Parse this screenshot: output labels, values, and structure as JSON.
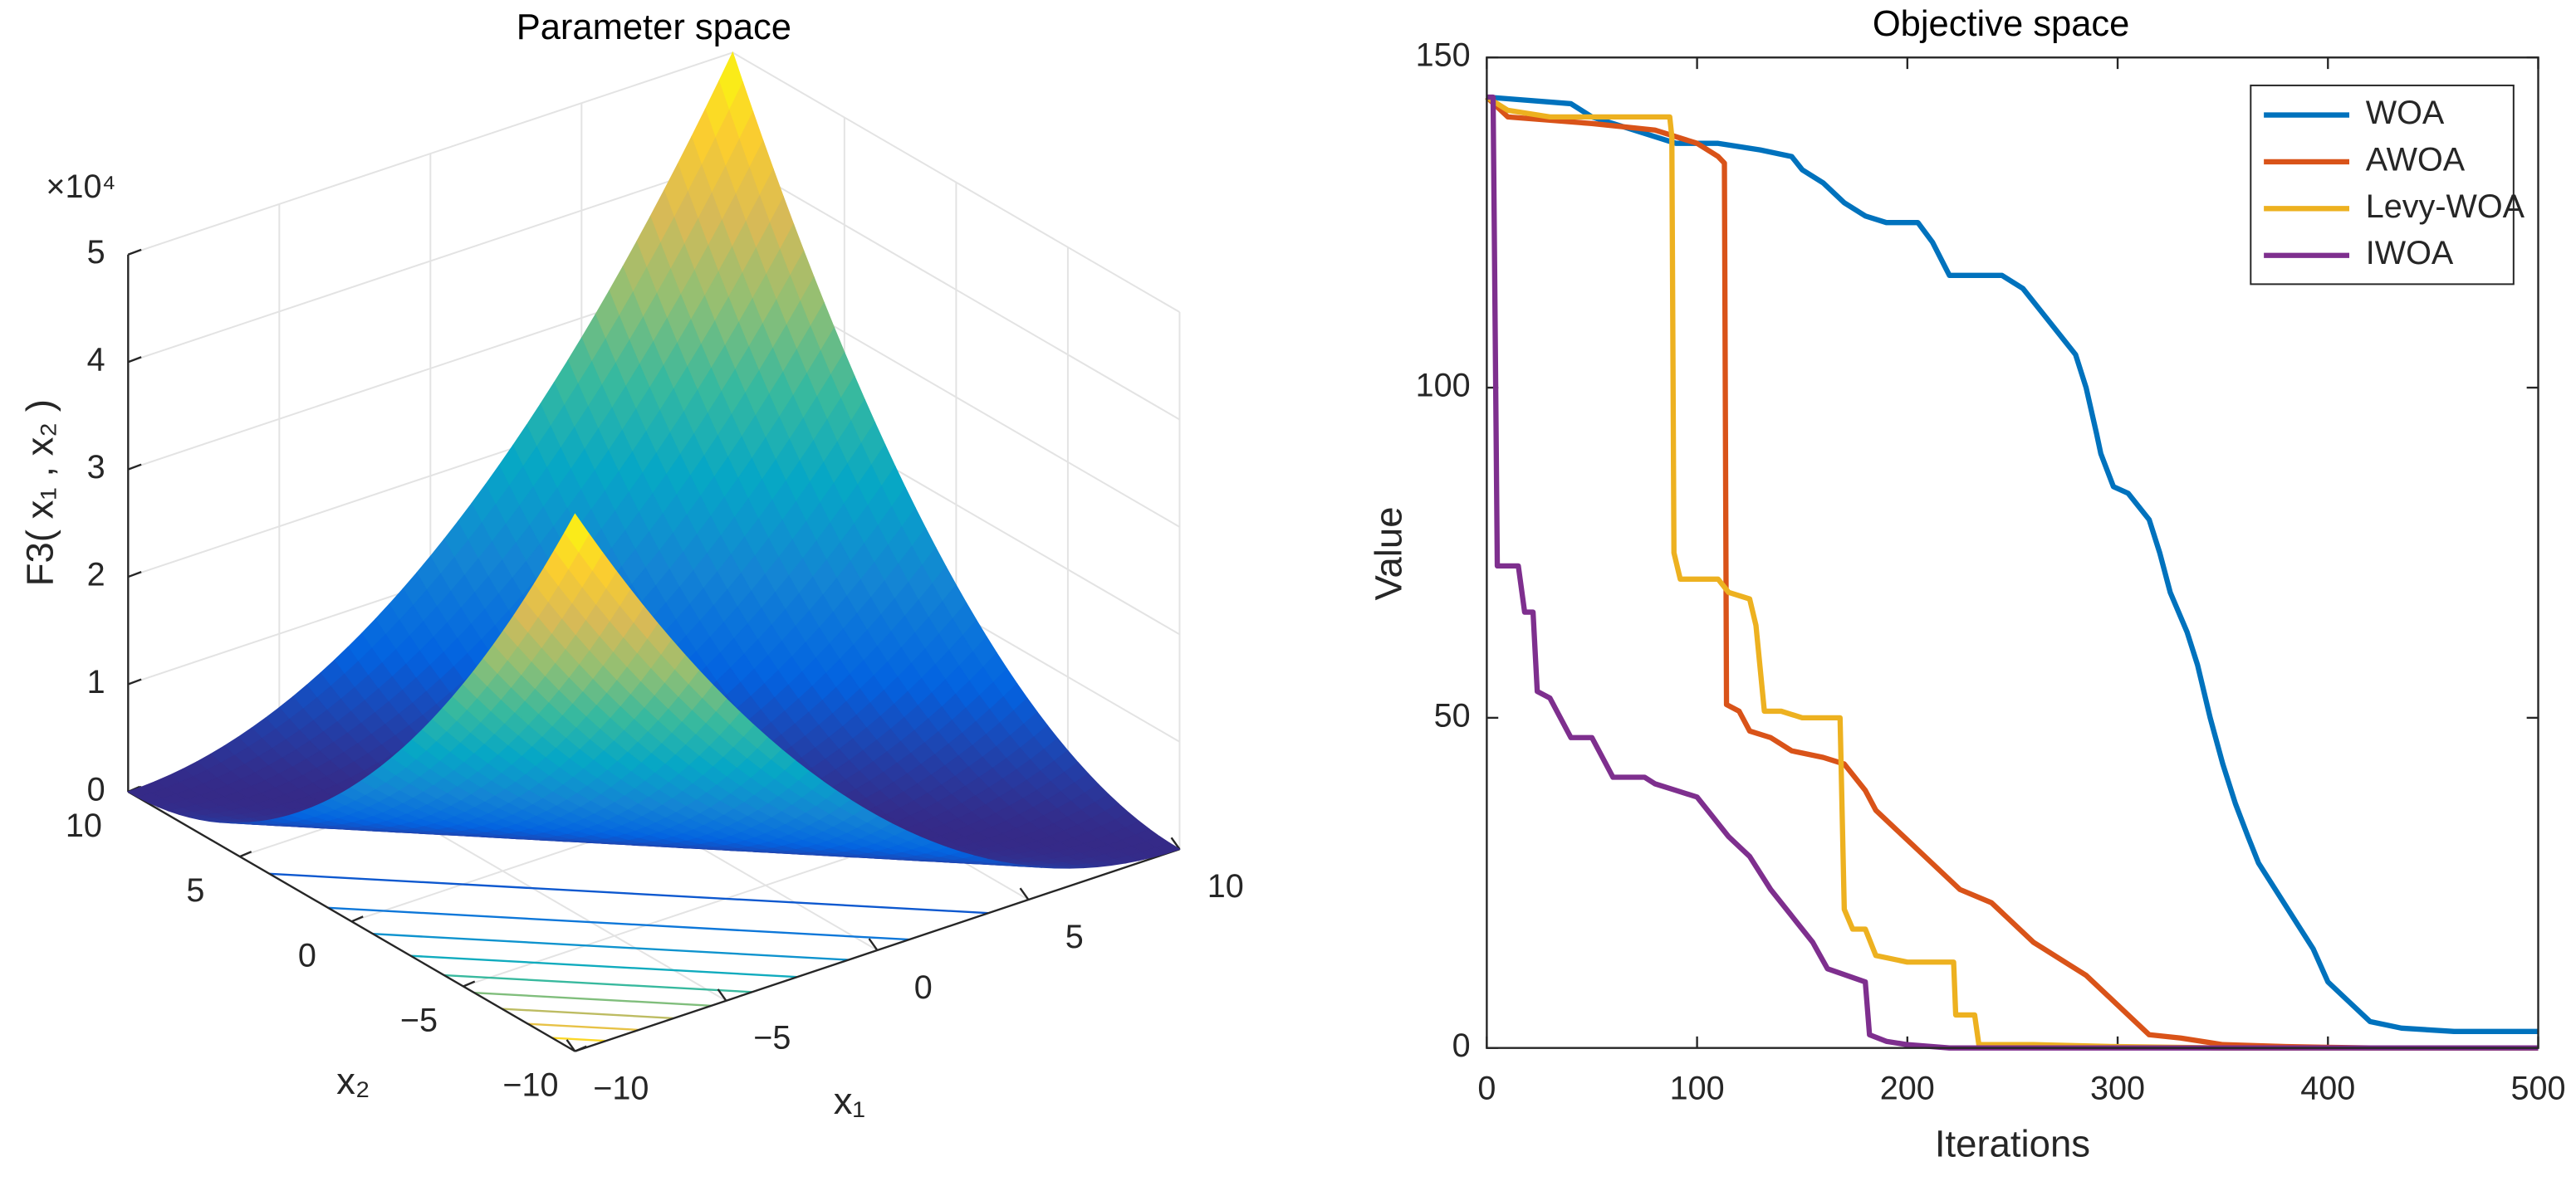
{
  "chart_data": [
    {
      "type": "surface",
      "title": "Parameter space",
      "xlabel": "x₁",
      "ylabel": "x₂",
      "zlabel": "F3( x₁ , x₂ )",
      "zexponent": "×10⁴",
      "xlim": [
        -10,
        10
      ],
      "ylim": [
        -10,
        10
      ],
      "zlim": [
        0,
        5
      ],
      "xticks": [
        {
          "value": -10,
          "label": "−10"
        },
        {
          "value": -5,
          "label": "−5"
        },
        0,
        5,
        10
      ],
      "yticks": [
        {
          "value": -10,
          "label": "−10"
        },
        {
          "value": -5,
          "label": "−5"
        },
        0,
        5,
        10
      ],
      "zticks": [
        0,
        1,
        2,
        3,
        4,
        5
      ],
      "grid": true,
      "contour": true
    },
    {
      "type": "line",
      "title": "Objective space",
      "xlabel": "Iterations",
      "ylabel": "Value",
      "xlim": [
        0,
        500
      ],
      "ylim": [
        0,
        150
      ],
      "xticks": [
        0,
        100,
        200,
        300,
        400,
        500
      ],
      "yticks": [
        0,
        50,
        100,
        150
      ],
      "legend": "northeast",
      "box": true,
      "series": [
        {
          "name": "WOA",
          "color": "#0072bd",
          "x": [
            0,
            40,
            50,
            70,
            90,
            110,
            130,
            145,
            150,
            160,
            170,
            180,
            190,
            205,
            212,
            220,
            245,
            255,
            265,
            275,
            280,
            285,
            290,
            292,
            298,
            305,
            315,
            320,
            325,
            333,
            338,
            344,
            350,
            356,
            362,
            367,
            377,
            385,
            393,
            400,
            410,
            420,
            435,
            460,
            500
          ],
          "values": [
            144,
            143,
            141,
            139,
            137,
            137,
            136,
            135,
            133,
            131,
            128,
            126,
            125,
            125,
            122,
            117,
            117,
            115,
            111,
            107,
            105,
            100,
            93,
            90,
            85,
            84,
            80,
            75,
            69,
            63,
            58,
            50,
            43,
            37,
            32,
            28,
            23,
            19,
            15,
            10,
            7,
            4,
            3,
            2.5,
            2.5
          ]
        },
        {
          "name": "AWOA",
          "color": "#d95319",
          "x": [
            0,
            10,
            50,
            80,
            100,
            110,
            113,
            114,
            120,
            125,
            135,
            145,
            160,
            170,
            180,
            185,
            195,
            205,
            215,
            225,
            240,
            250,
            260,
            275,
            285,
            295,
            305,
            315,
            330,
            350,
            380,
            420,
            500
          ],
          "values": [
            144,
            141,
            140,
            139,
            137,
            135,
            134,
            52,
            51,
            48,
            47,
            45,
            44,
            43,
            39,
            36,
            33,
            30,
            27,
            24,
            22,
            19,
            16,
            13,
            11,
            8,
            5,
            2,
            1.5,
            0.5,
            0.2,
            0,
            0
          ]
        },
        {
          "name": "Levy-WOA",
          "color": "#edb120",
          "x": [
            0,
            10,
            30,
            87,
            88,
            89,
            92,
            110,
            115,
            125,
            128,
            132,
            140,
            150,
            168,
            170,
            174,
            180,
            185,
            200,
            222,
            223,
            232,
            234,
            260,
            300,
            350,
            500
          ],
          "values": [
            144,
            142,
            141,
            141,
            138,
            75,
            71,
            71,
            69,
            68,
            64,
            51,
            51,
            50,
            50,
            21,
            18,
            18,
            14,
            13,
            13,
            5,
            5,
            0.5,
            0.5,
            0.2,
            0,
            0
          ]
        },
        {
          "name": "IWOA",
          "color": "#7e2f8e",
          "x": [
            0,
            3,
            5,
            15,
            18,
            22,
            24,
            30,
            35,
            40,
            50,
            55,
            60,
            75,
            80,
            90,
            100,
            105,
            115,
            125,
            135,
            145,
            155,
            162,
            180,
            182,
            190,
            200,
            220,
            500
          ],
          "values": [
            144,
            144,
            73,
            73,
            66,
            66,
            54,
            53,
            50,
            47,
            47,
            44,
            41,
            41,
            40,
            39,
            38,
            36,
            32,
            29,
            24,
            20,
            16,
            12,
            10,
            2,
            1,
            0.5,
            0,
            0
          ]
        }
      ]
    }
  ]
}
